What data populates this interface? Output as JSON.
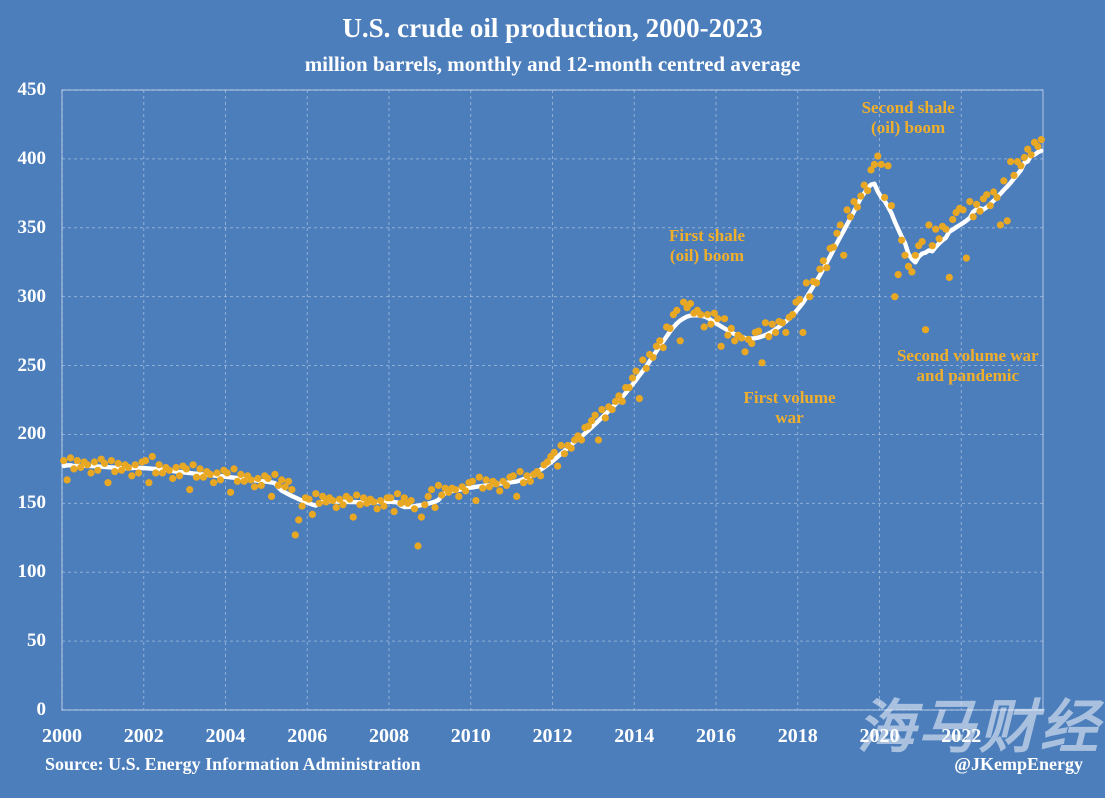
{
  "header": {
    "title": "U.S. crude oil production, 2000-2023",
    "subtitle": "million barrels, monthly and 12-month centred average"
  },
  "footer": {
    "source": "Source: U.S. Energy Information Administration",
    "credit": "@JKempEnergy",
    "watermark": "海马财经"
  },
  "colors": {
    "background": "#4C7EBC",
    "dot_gold": "#E9A823",
    "line_white": "#FFFFFF",
    "grid": "#C9D6EA",
    "text_white": "#FFFFFF",
    "annotation_gold": "#F0AF2B"
  },
  "chart_data": {
    "type": "scatter",
    "title": "U.S. crude oil production, 2000-2023",
    "subtitle": "million barrels, monthly and 12-month centred average",
    "xlabel": "",
    "ylabel": "",
    "x_unit": "month",
    "x_start": "2000-01",
    "x_end": "2023-12",
    "x_range_years": [
      2000,
      2024
    ],
    "x_tick_labels": [
      "2000",
      "2002",
      "2004",
      "2006",
      "2008",
      "2010",
      "2012",
      "2014",
      "2016",
      "2018",
      "2020",
      "2022"
    ],
    "ylim": [
      0,
      450
    ],
    "y_ticks": [
      0,
      50,
      100,
      150,
      200,
      250,
      300,
      350,
      400,
      450
    ],
    "grid": true,
    "legend": "none",
    "series": [
      {
        "name": "Monthly production (million barrels)",
        "type": "scatter",
        "color": "#E9A823",
        "values": [
          181,
          167,
          183,
          175,
          181,
          176,
          180,
          178,
          172,
          180,
          174,
          182,
          179,
          165,
          181,
          173,
          179,
          174,
          178,
          176,
          170,
          178,
          172,
          180,
          181,
          165,
          184,
          172,
          178,
          172,
          176,
          174,
          168,
          176,
          170,
          177,
          175,
          160,
          178,
          169,
          175,
          169,
          173,
          171,
          165,
          172,
          167,
          174,
          172,
          158,
          175,
          166,
          171,
          166,
          170,
          167,
          162,
          168,
          163,
          170,
          168,
          155,
          171,
          163,
          167,
          162,
          166,
          160,
          127,
          138,
          148,
          154,
          153,
          142,
          157,
          150,
          155,
          151,
          154,
          152,
          147,
          153,
          149,
          155,
          153,
          140,
          156,
          149,
          154,
          150,
          153,
          151,
          146,
          152,
          148,
          154,
          154,
          144,
          157,
          150,
          154,
          150,
          152,
          146,
          119,
          140,
          149,
          155,
          160,
          147,
          163,
          156,
          161,
          158,
          161,
          160,
          155,
          162,
          159,
          165,
          166,
          152,
          169,
          161,
          167,
          162,
          166,
          164,
          159,
          166,
          163,
          169,
          170,
          155,
          173,
          165,
          170,
          166,
          171,
          173,
          170,
          178,
          180,
          184,
          187,
          177,
          192,
          186,
          192,
          190,
          196,
          199,
          196,
          205,
          206,
          210,
          214,
          196,
          218,
          212,
          220,
          218,
          224,
          228,
          224,
          234,
          234,
          241,
          246,
          226,
          254,
          248,
          258,
          256,
          264,
          268,
          263,
          278,
          277,
          287,
          290,
          268,
          296,
          292,
          295,
          288,
          290,
          287,
          278,
          287,
          280,
          288,
          284,
          264,
          284,
          272,
          277,
          268,
          272,
          270,
          260,
          269,
          266,
          274,
          275,
          252,
          281,
          271,
          280,
          274,
          282,
          281,
          274,
          285,
          287,
          296,
          298,
          274,
          310,
          300,
          311,
          310,
          320,
          326,
          321,
          335,
          336,
          346,
          352,
          330,
          363,
          358,
          369,
          365,
          373,
          381,
          377,
          392,
          396,
          402,
          396,
          372,
          395,
          366,
          300,
          316,
          341,
          330,
          322,
          318,
          330,
          337,
          340,
          276,
          352,
          337,
          349,
          342,
          351,
          349,
          314,
          356,
          361,
          364,
          363,
          328,
          369,
          358,
          367,
          362,
          371,
          374,
          366,
          376,
          372,
          352,
          384,
          355,
          398,
          388,
          398,
          395,
          401,
          407,
          403,
          412,
          409,
          414
        ]
      },
      {
        "name": "12-month centred average",
        "type": "line",
        "color": "#FFFFFF",
        "derived": "12-month centred moving average of the monthly series (window clamped at ends)"
      }
    ],
    "annotations": [
      {
        "lines": [
          "Second shale",
          "(oil) boom"
        ],
        "x_year": 2020.7,
        "y_value": 430
      },
      {
        "lines": [
          "First shale",
          "(oil) boom"
        ],
        "x_year": 2015.78,
        "y_value": 337
      },
      {
        "lines": [
          "First volume",
          "war"
        ],
        "x_year": 2017.8,
        "y_value": 219
      },
      {
        "lines": [
          "Second volume war",
          "and pandemic"
        ],
        "x_year": 2022.16,
        "y_value": 250
      }
    ]
  }
}
